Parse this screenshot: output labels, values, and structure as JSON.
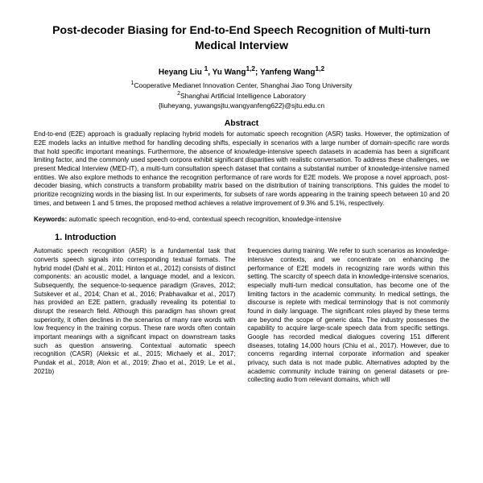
{
  "title": "Post-decoder Biasing for End-to-End Speech Recognition of Multi-turn Medical Interview",
  "authors_html": "Heyang Liu <sup>1</sup>, Yu Wang<sup>1,2</sup>; Yanfeng Wang<sup>1,2</sup>",
  "affil1": "Cooperative Medianet Innovation Center, Shanghai Jiao Tong University",
  "affil2": "Shanghai Artificial Intelligence Laboratory",
  "emails": "{liuheyang, yuwangsjtu,wangyanfeng622}@sjtu.edu.cn",
  "abs_head": "Abstract",
  "abstract": "End-to-end (E2E) approach is gradually replacing hybrid models for automatic speech recognition (ASR) tasks. However, the optimization of E2E models lacks an intuitive method for handling decoding shifts, especially in scenarios with a large number of domain-specific rare words that hold specific important meanings. Furthermore, the absence of knowledge-intensive speech datasets in academia has been a significant limiting factor, and the commonly used speech corpora exhibit significant disparities with realistic conversation. To address these challenges, we present Medical Interview (MED-IT), a multi-turn consultation speech dataset that contains a substantial number of knowledge-intensive named entities. We also explore methods to enhance the recognition performance of rare words for E2E models. We propose a novel approach, post-decoder biasing, which constructs a transform probability matrix based on the distribution of training transcriptions. This guides the model to prioritize recognizing words in the biasing list. In our experiments, for subsets of rare words appearing in the training speech between 10 and 20 times, and between 1 and 5 times, the proposed method achieves a relative improvement of 9.3% and 5.1%, respectively.",
  "keywords_label": "Keywords:",
  "keywords": " automatic speech recognition, end-to-end, contextual speech recognition, knowledge-intensive",
  "section1": "1.    Introduction",
  "col_left": "Automatic speech recognition (ASR) is a fundamental task that converts speech signals into corresponding textual formats. The hybrid model (Dahl et al., 2011; Hinton et al., 2012) consists of distinct components: an acoustic model, a language model, and a lexicon. Subsequently, the sequence-to-sequence paradigm (Graves, 2012; Sutskever et al., 2014; Chan et al., 2016; Prabhavalkar et al., 2017) has provided an E2E pattern, gradually revealing its potential to disrupt the research field. Although this paradigm has shown great superiority, it often declines in the scenarios of many rare words with low frequency in the training corpus. These rare words often contain important meanings with a significant impact on downstream tasks such as question answering. Contextual automatic speech recognition (CASR) (Aleksic et al., 2015; Michaely et al., 2017; Pundak et al., 2018; Alon et al., 2019; Zhao et al., 2019; Le et al., 2021b)",
  "col_right": "frequencies during training. We refer to such scenarios as knowledge-intensive contexts, and we concentrate on enhancing the performance of E2E models in recognizing rare words within this setting.   The scarcity of speech data in knowledge-intensive scenarios, especially multi-turn medical consultation, has become one of the limiting factors in the academic community. In medical settings, the discourse is replete with medical terminology that is not commonly found in daily language. The significant roles played by these terms are beyond the scope of generic data. The industry possesses the capability to acquire large-scale speech data from specific settings. Google has recorded medical dialogues covering 151 different diseases, totaling 14,000 hours (Chiu et al., 2017). However, due to concerns regarding internal corporate information and speaker privacy, such data is not made public. Alternatives adopted by the academic community include training on general datasets or pre-collecting audio from relevant domains, which will"
}
